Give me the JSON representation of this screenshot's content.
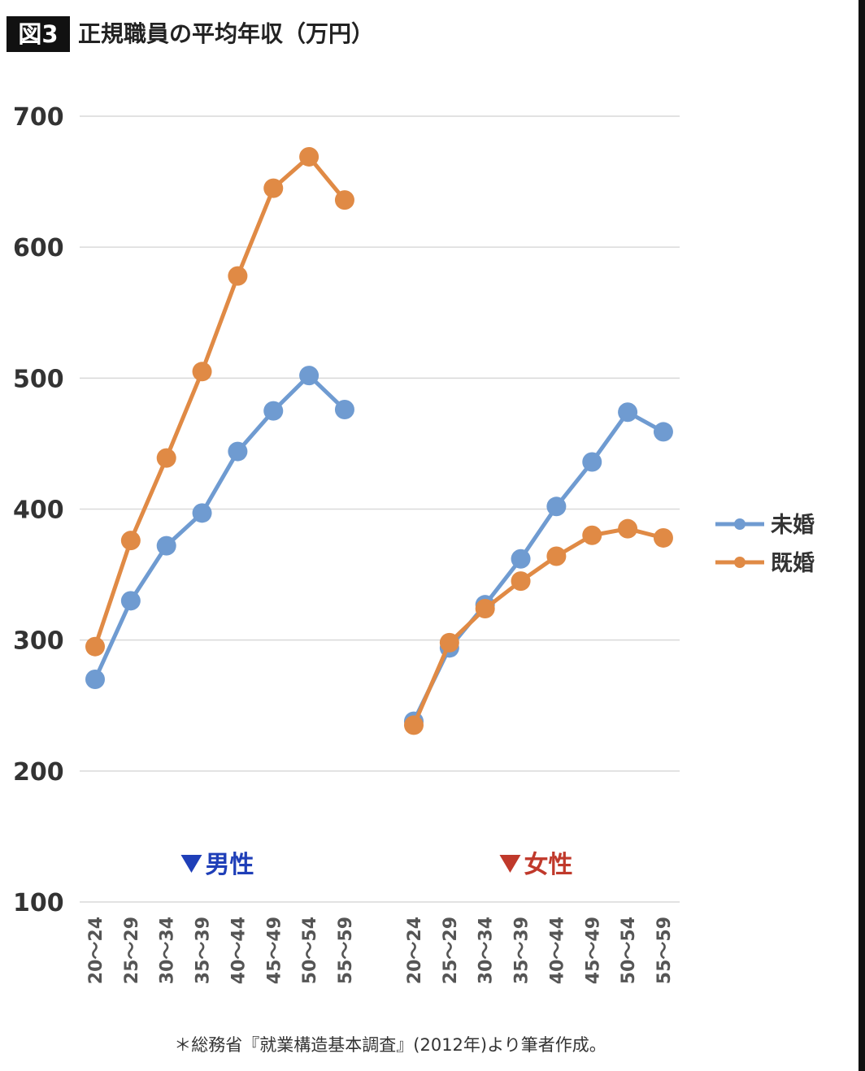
{
  "header": {
    "figure_label": "図3",
    "title": "正規職員の平均年収（万円）"
  },
  "source_note": "＊総務省『就業構造基本調査』(2012年)より筆者作成。",
  "chart_data": {
    "type": "line",
    "title": "正規職員の平均年収（万円）",
    "y_ticks": [
      "700",
      "600",
      "500",
      "400",
      "300",
      "200",
      "100"
    ],
    "ylim": [
      100,
      700
    ],
    "grid": true,
    "legend_position": "right",
    "groups": [
      {
        "name": "男性",
        "marker_color": "#1f3fb8",
        "categories": [
          "20～24",
          "25～29",
          "30～34",
          "35～39",
          "40～44",
          "45～49",
          "50～54",
          "55～59"
        ]
      },
      {
        "name": "女性",
        "marker_color": "#c0392b",
        "categories": [
          "20～24",
          "25～29",
          "30～34",
          "35～39",
          "40～44",
          "45～49",
          "50～54",
          "55～59"
        ]
      }
    ],
    "series": [
      {
        "name": "未婚",
        "color": "#6f9bd1",
        "values": {
          "男性": [
            270,
            330,
            372,
            397,
            444,
            475,
            502,
            476
          ],
          "女性": [
            238,
            294,
            327,
            362,
            402,
            436,
            474,
            459
          ]
        }
      },
      {
        "name": "既婚",
        "color": "#e08a45",
        "values": {
          "男性": [
            295,
            376,
            439,
            505,
            578,
            645,
            669,
            636
          ],
          "女性": [
            235,
            298,
            324,
            345,
            364,
            380,
            385,
            378
          ]
        }
      }
    ]
  }
}
